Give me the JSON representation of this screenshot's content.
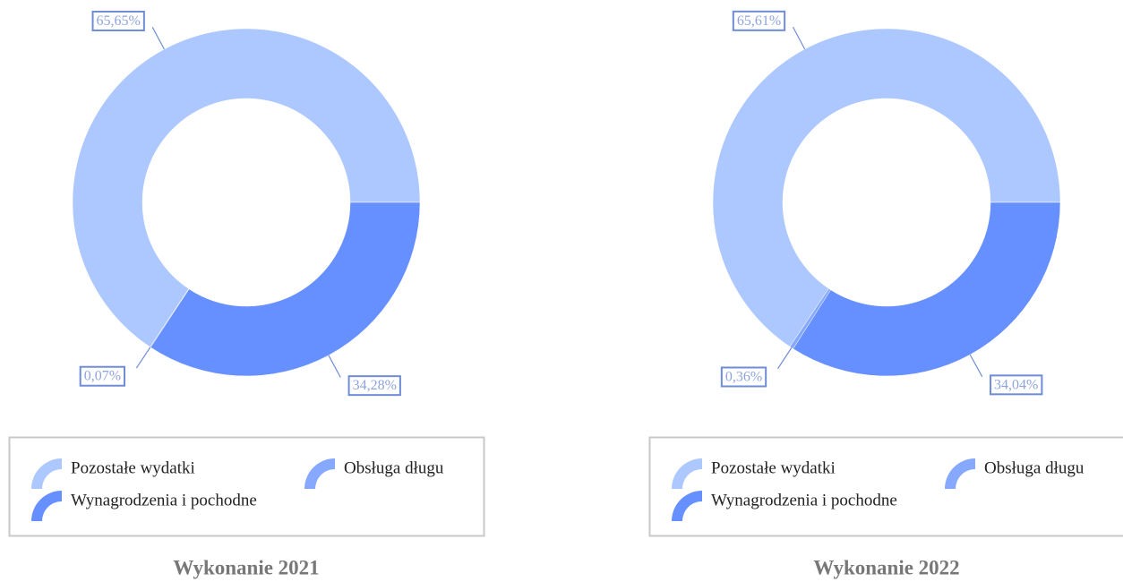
{
  "chart_data": [
    {
      "type": "doughnut",
      "title": "Wykonanie 2021",
      "categories": [
        "Pozostałe wydatki",
        "Obsługa długu",
        "Wynagrodzenia i pochodne"
      ],
      "values": [
        65.65,
        0.07,
        34.28
      ],
      "value_labels": [
        "65,65%",
        "0,07%",
        "34,28%"
      ],
      "colors": [
        "#adc8ff",
        "#87a8ff",
        "#6690ff"
      ]
    },
    {
      "type": "doughnut",
      "title": "Wykonanie 2022",
      "categories": [
        "Pozostałe wydatki",
        "Obsługa długu",
        "Wynagrodzenia i pochodne"
      ],
      "values": [
        65.61,
        0.36,
        34.04
      ],
      "value_labels": [
        "65,61%",
        "0,36%",
        "34,04%"
      ],
      "colors": [
        "#adc8ff",
        "#87a8ff",
        "#6690ff"
      ]
    }
  ]
}
